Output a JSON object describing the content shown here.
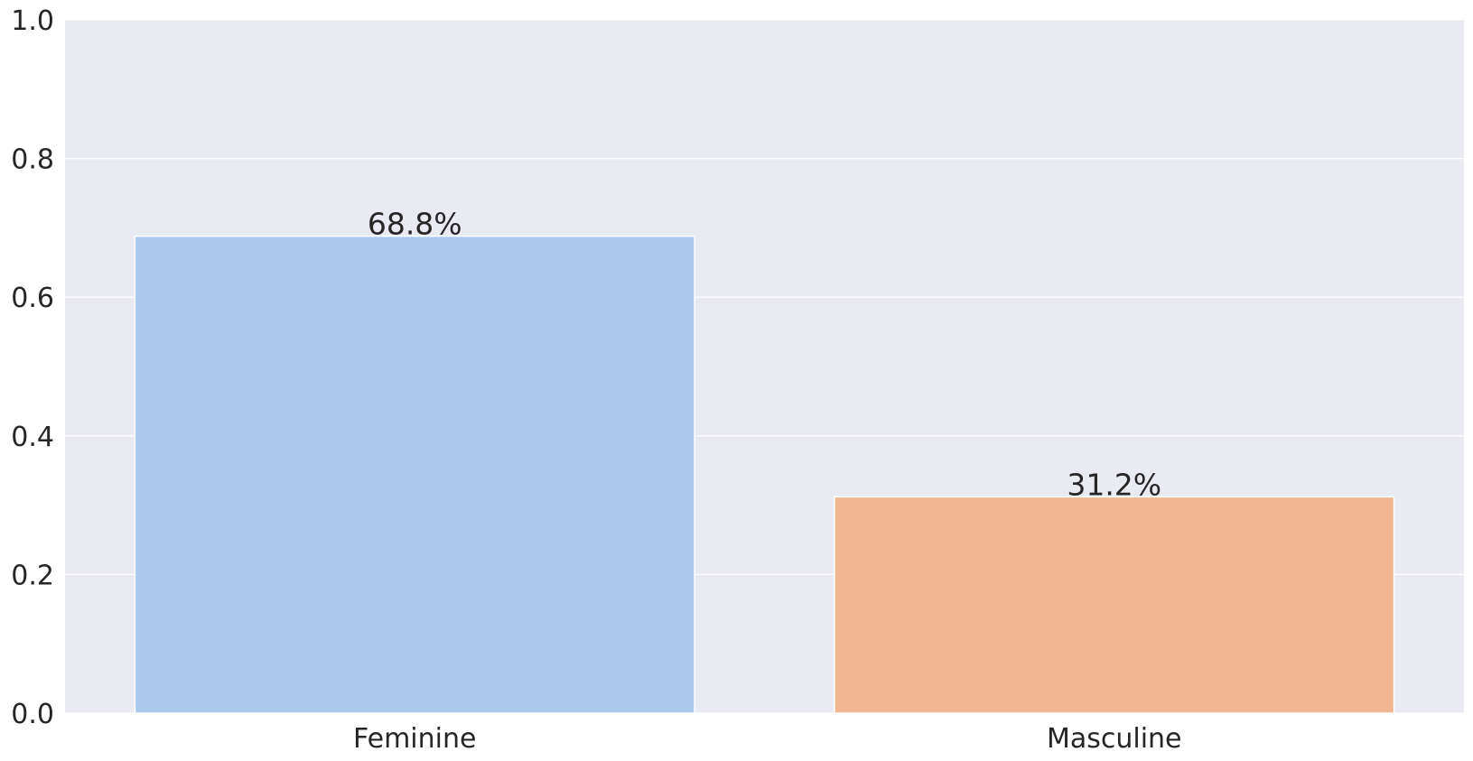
{
  "chart_data": {
    "type": "bar",
    "title": "",
    "xlabel": "",
    "ylabel": "",
    "categories": [
      "Feminine",
      "Masculine"
    ],
    "values": [
      0.688,
      0.312
    ],
    "data_labels": [
      "68.8%",
      "31.2%"
    ],
    "bar_colors": [
      "#abc9ec",
      "#f0b792"
    ],
    "ylim": [
      0,
      1.0
    ],
    "yticks": [
      0.0,
      0.2,
      0.4,
      0.6,
      0.8,
      1.0
    ],
    "ytick_labels": [
      "0.0",
      "0.2",
      "0.4",
      "0.6",
      "0.8",
      "1.0"
    ],
    "grid": true,
    "legend": "none",
    "background_color": "#eaeaf2",
    "grid_color": "#ffffff",
    "text_color": "#262626"
  }
}
